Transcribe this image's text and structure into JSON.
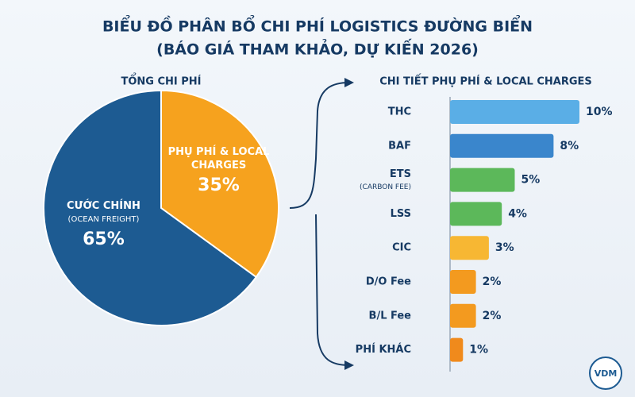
{
  "title_lines": [
    "BIỂU ĐỒ PHÂN BỔ CHI PHÍ LOGISTICS ĐƯỜNG BIỂN",
    "(BÁO GIÁ THAM KHẢO, DỰ KIẾN 2026)"
  ],
  "logo": "VDM",
  "chart_data": [
    {
      "type": "pie",
      "title": "TỔNG CHI PHÍ",
      "categories": [
        "CƯỚC CHÍNH",
        "PHỤ PHÍ & LOCAL CHARGES"
      ],
      "sublabels": [
        "(OCEAN FREIGHT)",
        null
      ],
      "values": [
        65,
        35
      ],
      "value_labels": [
        "65%",
        "35%"
      ],
      "colors": [
        "#1d5b92",
        "#f6a21e"
      ]
    },
    {
      "type": "hbar",
      "title": "CHI TIẾT PHỤ PHÍ & LOCAL CHARGES",
      "categories": [
        "THC",
        "BAF",
        "ETS",
        "LSS",
        "CIC",
        "D/O Fee",
        "B/L Fee",
        "PHÍ KHÁC"
      ],
      "sublabels": [
        null,
        null,
        "(CARBON FEE)",
        null,
        null,
        null,
        null,
        null
      ],
      "values": [
        10,
        8,
        5,
        4,
        3,
        2,
        2,
        1
      ],
      "value_labels": [
        "10%",
        "8%",
        "5%",
        "4%",
        "3%",
        "2%",
        "2%",
        "1%"
      ],
      "colors": [
        "#5aaee6",
        "#3a86cc",
        "#5cb85a",
        "#5cb85a",
        "#f7b733",
        "#f39a1f",
        "#f39a1f",
        "#f08a1c"
      ],
      "xlim": [
        0,
        10
      ]
    }
  ]
}
